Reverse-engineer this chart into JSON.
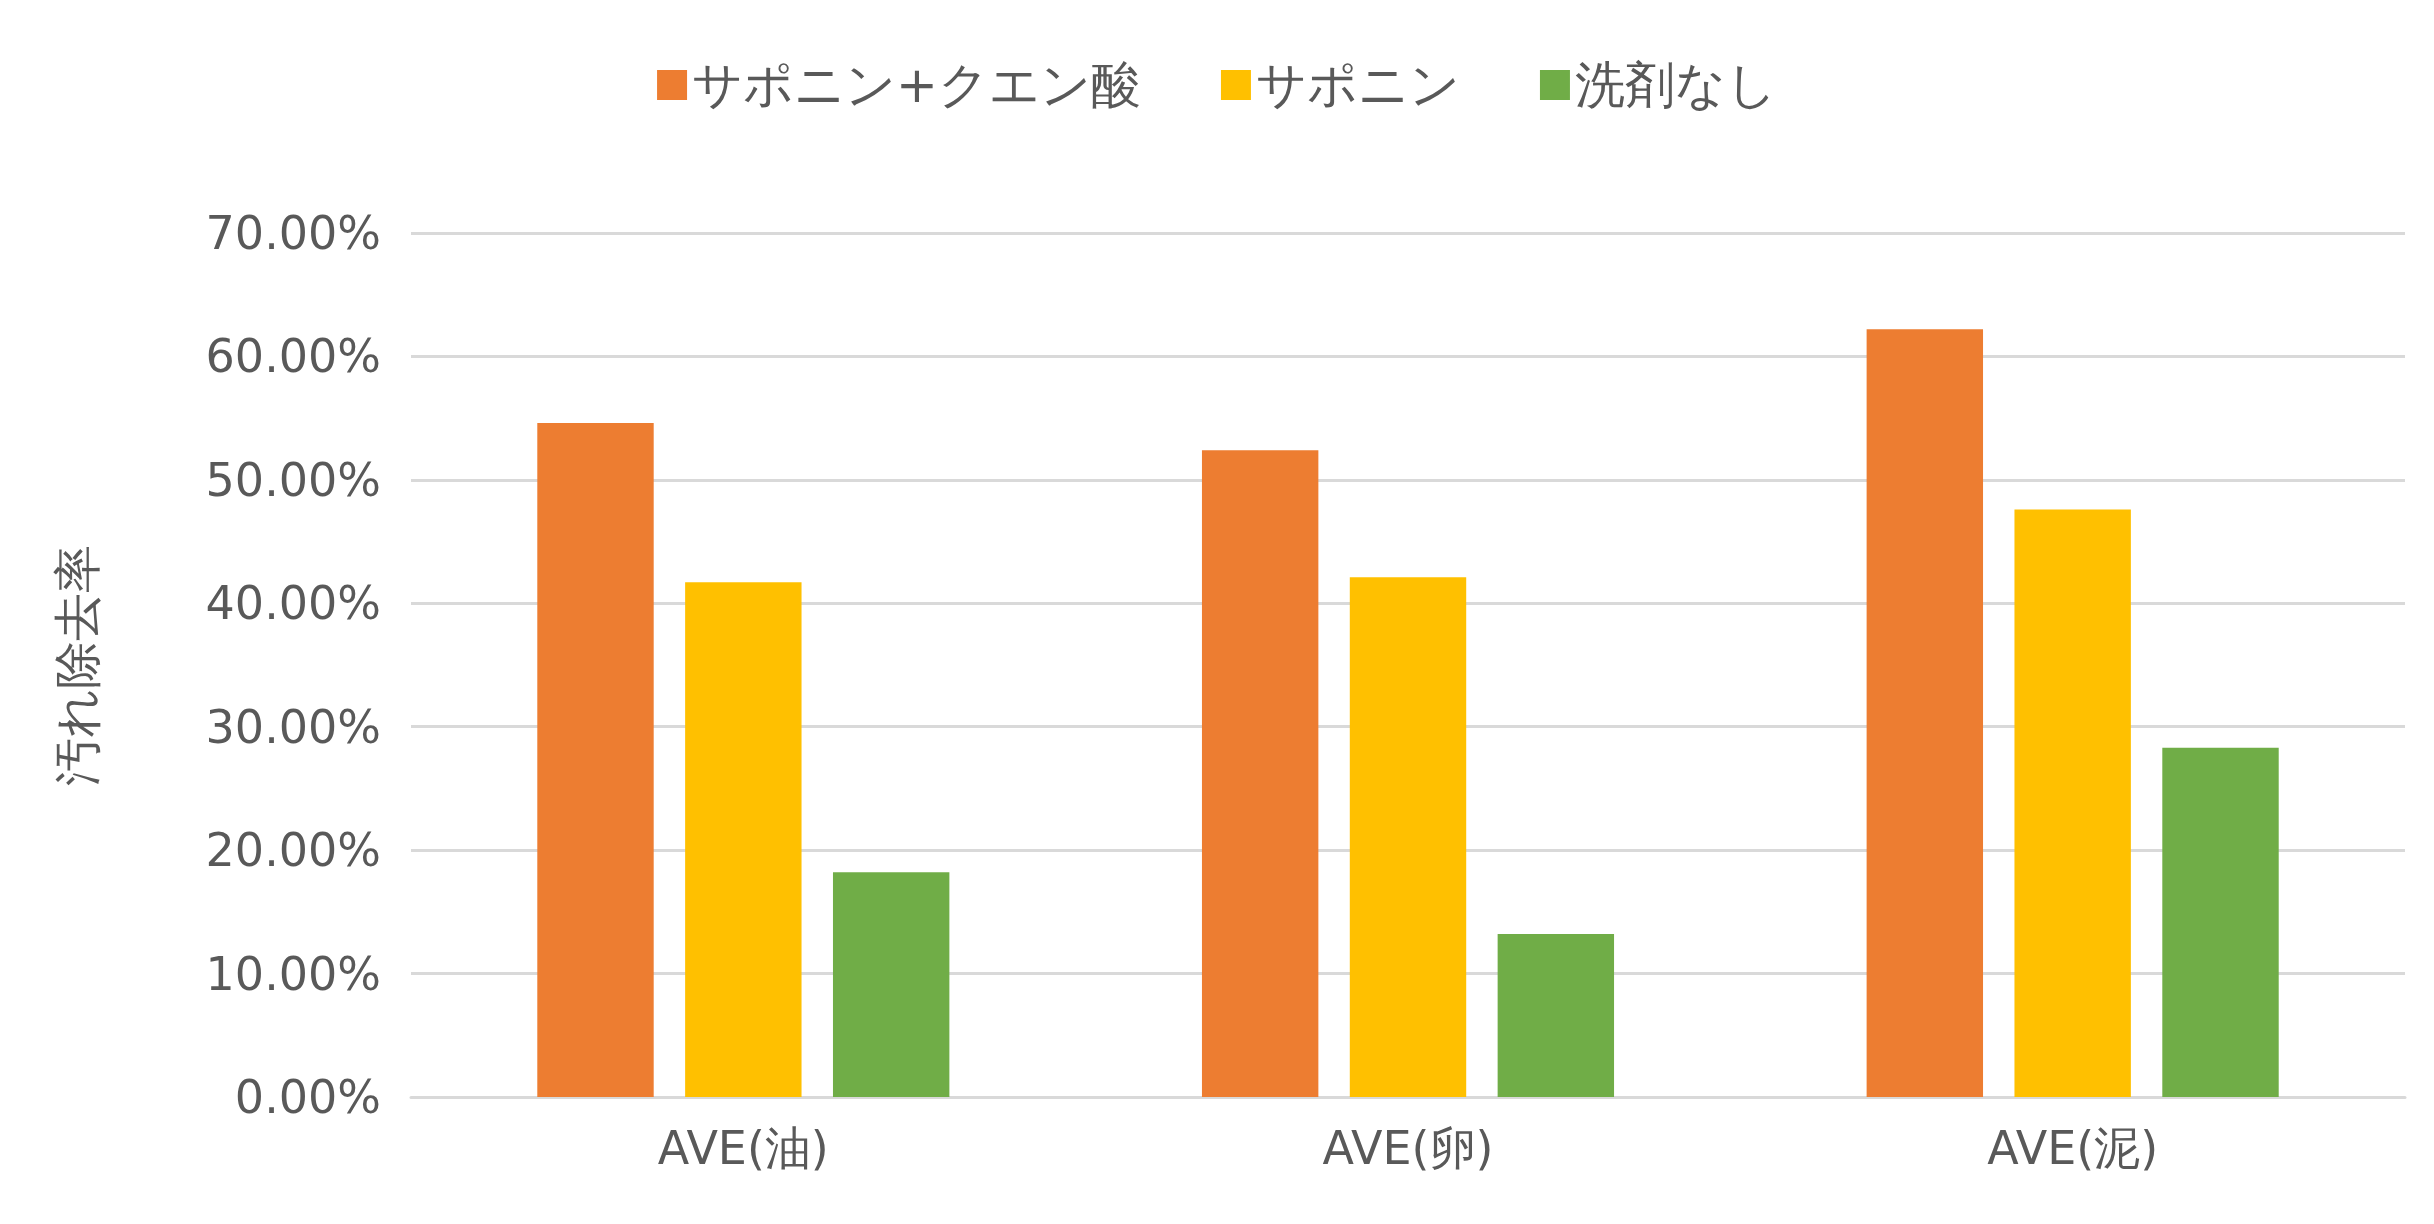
{
  "chart_data": {
    "type": "bar",
    "ylabel": "汚れ除去率",
    "categories": [
      "AVE(油)",
      "AVE(卵)",
      "AVE(泥)"
    ],
    "series": [
      {
        "name": "サポニン+クエン酸",
        "color": "#ed7d31",
        "values": [
          54.6,
          52.4,
          62.2
        ]
      },
      {
        "name": "サポニン",
        "color": "#ffc000",
        "values": [
          41.7,
          42.1,
          47.6
        ]
      },
      {
        "name": "洗剤なし",
        "color": "#70ad47",
        "values": [
          18.2,
          13.2,
          28.3
        ]
      }
    ],
    "ylim": [
      0,
      70
    ],
    "yticks": [
      {
        "value": 0,
        "label": "0.00%"
      },
      {
        "value": 10,
        "label": "10.00%"
      },
      {
        "value": 20,
        "label": "20.00%"
      },
      {
        "value": 30,
        "label": "30.00%"
      },
      {
        "value": 40,
        "label": "40.00%"
      },
      {
        "value": 50,
        "label": "50.00%"
      },
      {
        "value": 60,
        "label": "60.00%"
      },
      {
        "value": 70,
        "label": "70.00%"
      }
    ],
    "grid": "y",
    "legend": "top"
  }
}
